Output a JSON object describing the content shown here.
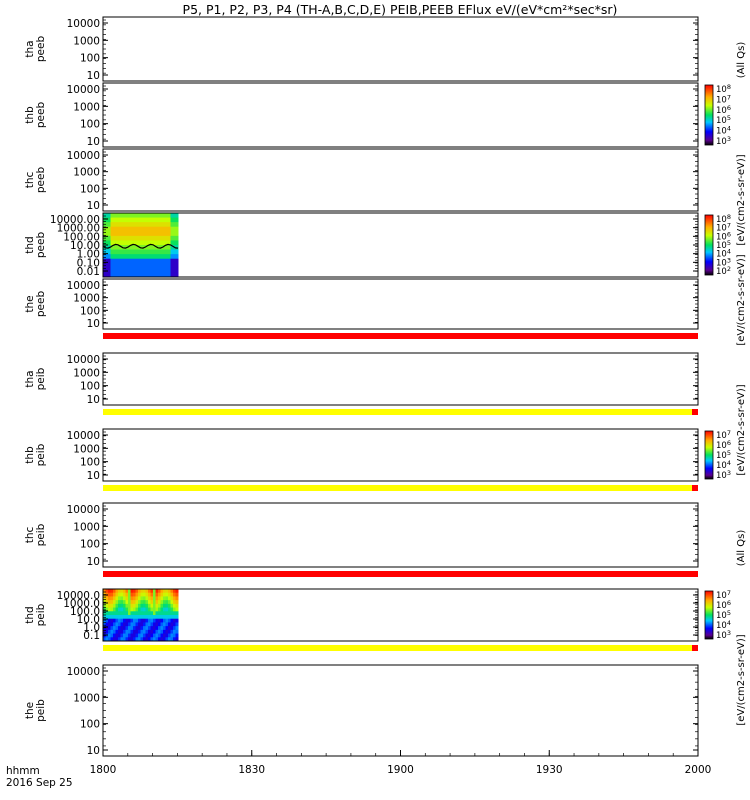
{
  "title": "P5, P1, P2, P3, P4 (TH-A,B,C,D,E) PEIB,PEEB EFlux eV/(eV*cm²*sec*sr)",
  "xaxis": {
    "ticks": [
      "1800",
      "1830",
      "1900",
      "1930",
      "2000"
    ],
    "label_line1": "hhmm",
    "label_line2": "2016 Sep 25"
  },
  "colorbar_labels": {
    "peeb": "[eV/(cm2-s-sr-eV)]",
    "peib": "[eV/(cm2-s-sr-eV)]",
    "all_qs": "(All Qs)"
  },
  "chart_data": {
    "type": "heatmap",
    "x_range": [
      "1800",
      "2000"
    ],
    "panels": [
      {
        "id": "tha_peeb",
        "label1": "tha",
        "label2": "peeb",
        "yticks": [
          "10000",
          "1000",
          "100",
          "10"
        ],
        "ylog": true,
        "has_data": false
      },
      {
        "id": "thb_peeb",
        "label1": "thb",
        "label2": "peeb",
        "yticks": [
          "10000",
          "1000",
          "100",
          "10"
        ],
        "ylog": true,
        "has_data": false,
        "colorbar": {
          "ticks": [
            "10^8",
            "10^7",
            "10^6",
            "10^5",
            "10^4",
            "10^3"
          ]
        }
      },
      {
        "id": "thc_peeb",
        "label1": "thc",
        "label2": "peeb",
        "yticks": [
          "10000",
          "1000",
          "100",
          "10"
        ],
        "ylog": true,
        "has_data": false
      },
      {
        "id": "thd_peeb",
        "label1": "thd",
        "label2": "peeb",
        "yticks": [
          "10000.00",
          "1000.00",
          "100.00",
          "10.00",
          "1.00",
          "0.10",
          "0.01"
        ],
        "ylog": true,
        "has_data": true,
        "data_x_end": "1815",
        "colorbar": {
          "ticks": [
            "10^8",
            "10^7",
            "10^6",
            "10^5",
            "10^4",
            "10^3",
            "10^2"
          ]
        }
      },
      {
        "id": "the_peeb",
        "label1": "the",
        "label2": "peeb",
        "yticks": [
          "10000",
          "1000",
          "100",
          "10"
        ],
        "ylog": true,
        "has_data": false,
        "flag_bar": "red"
      },
      {
        "id": "tha_peib",
        "label1": "tha",
        "label2": "peib",
        "yticks": [
          "10000",
          "1000",
          "100",
          "10"
        ],
        "ylog": true,
        "has_data": false,
        "flag_bar": "yellow"
      },
      {
        "id": "thb_peib",
        "label1": "thb",
        "label2": "peib",
        "yticks": [
          "10000",
          "1000",
          "100",
          "10"
        ],
        "ylog": true,
        "has_data": false,
        "flag_bar": "yellow",
        "colorbar": {
          "ticks": [
            "10^7",
            "10^6",
            "10^5",
            "10^4",
            "10^3"
          ]
        }
      },
      {
        "id": "thc_peib",
        "label1": "thc",
        "label2": "peib",
        "yticks": [
          "10000",
          "1000",
          "100",
          "10"
        ],
        "ylog": true,
        "has_data": false,
        "flag_bar": "red"
      },
      {
        "id": "thd_peib",
        "label1": "thd",
        "label2": "peib",
        "yticks": [
          "10000.0",
          "1000.0",
          "100.0",
          "10.0",
          "1.0",
          "0.1"
        ],
        "ylog": true,
        "has_data": true,
        "data_x_end": "1815",
        "flag_bar": "yellow",
        "colorbar": {
          "ticks": [
            "10^7",
            "10^6",
            "10^5",
            "10^4",
            "10^3"
          ]
        }
      },
      {
        "id": "the_peib",
        "label1": "the",
        "label2": "peib",
        "yticks": [
          "10000",
          "1000",
          "100",
          "10"
        ],
        "ylog": true,
        "has_data": false
      }
    ]
  }
}
